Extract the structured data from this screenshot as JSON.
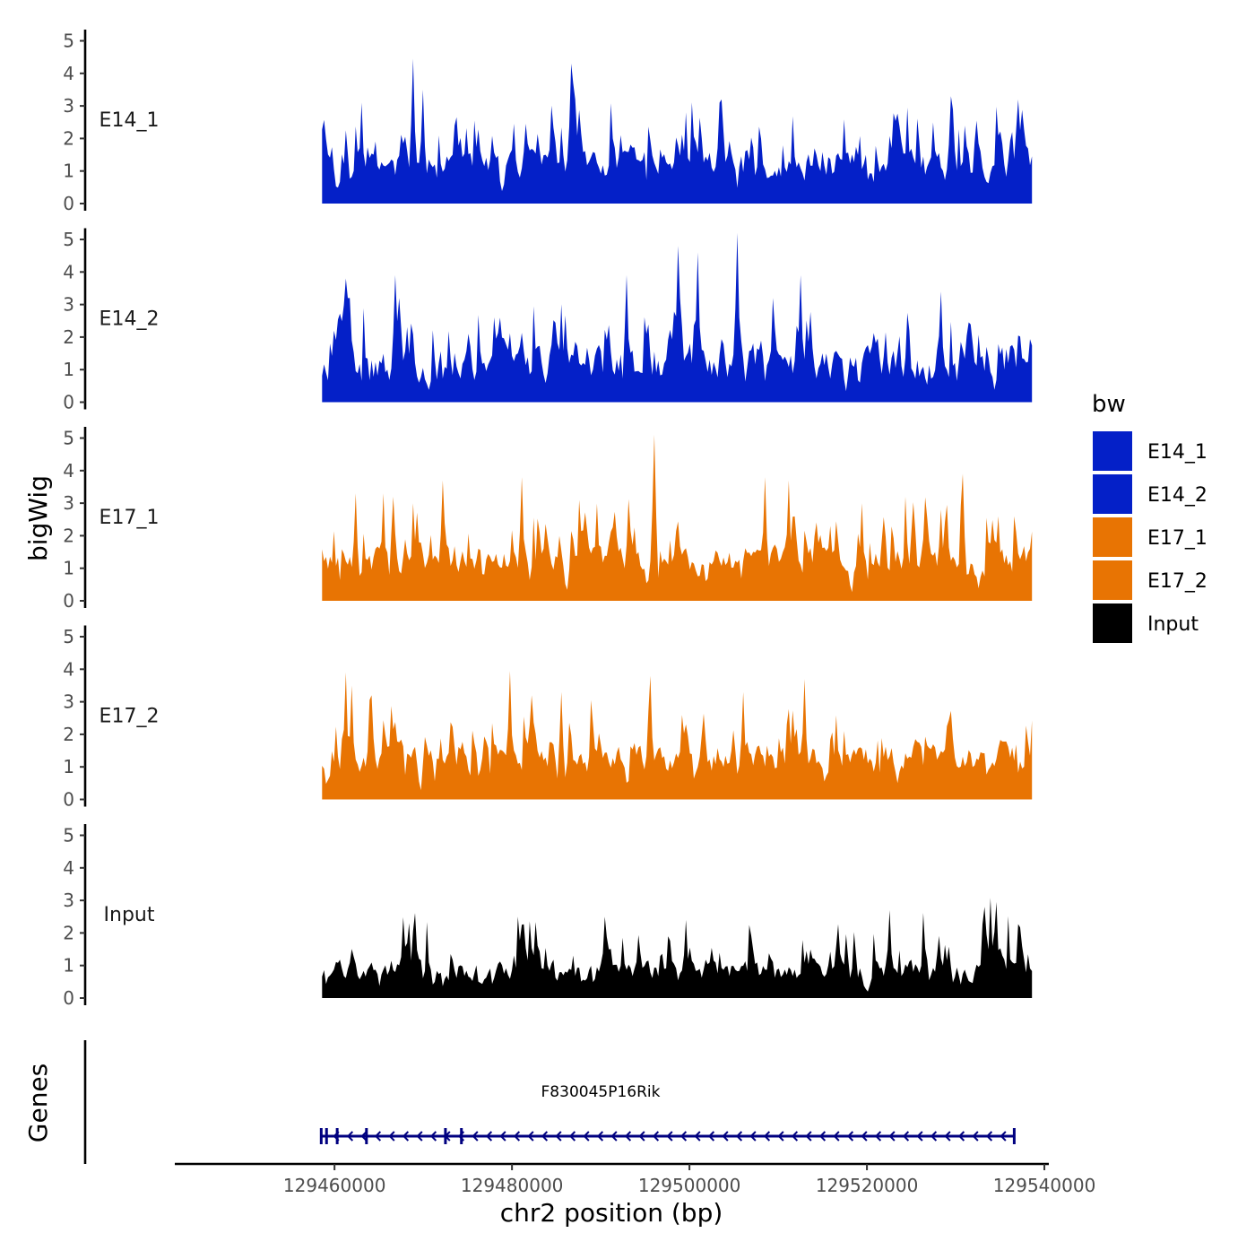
{
  "chart_data": {
    "type": "area",
    "chromosome": "chr2",
    "xlabel": "chr2 position (bp)",
    "ylabel": "bigWig",
    "xlim": [
      129442000,
      129540500
    ],
    "xticks": [
      129460000,
      129480000,
      129500000,
      129520000,
      129540000
    ],
    "xtick_labels": [
      "129460000",
      "129480000",
      "129500000",
      "129520000",
      "129540000"
    ],
    "x_data_range": [
      129458600,
      129538600
    ],
    "ylim": [
      0,
      5.4
    ],
    "yticks": [
      0,
      1,
      2,
      3,
      4,
      5
    ],
    "ytick_labels": [
      "0",
      "1",
      "2",
      "3",
      "4",
      "5"
    ],
    "legend": {
      "title": "bw",
      "position": "right",
      "entries": [
        {
          "label": "E14_1",
          "color": "#0420C8"
        },
        {
          "label": "E14_2",
          "color": "#0420C8"
        },
        {
          "label": "E17_1",
          "color": "#E87403"
        },
        {
          "label": "E17_2",
          "color": "#E87403"
        },
        {
          "label": "Input",
          "color": "#000000"
        }
      ]
    },
    "series": [
      {
        "name": "E14_1",
        "color": "#0420C8",
        "seed": 11,
        "base": 0.9,
        "spread": 1.5,
        "peaks": [
          [
            129468900,
            4.45
          ],
          [
            129470000,
            3.5
          ],
          [
            129486700,
            4.3
          ],
          [
            129487000,
            3.7
          ],
          [
            129499500,
            2.8
          ],
          [
            129529500,
            3.3
          ],
          [
            129503500,
            3.1
          ],
          [
            129463000,
            3.1
          ]
        ]
      },
      {
        "name": "E14_2",
        "color": "#0420C8",
        "seed": 23,
        "base": 0.9,
        "spread": 1.7,
        "peaks": [
          [
            129505500,
            5.2
          ],
          [
            129498800,
            4.8
          ],
          [
            129501000,
            4.6
          ],
          [
            129466800,
            3.9
          ],
          [
            129461300,
            3.8
          ],
          [
            129512500,
            3.9
          ],
          [
            129493000,
            3.9
          ],
          [
            129528300,
            3.4
          ]
        ]
      },
      {
        "name": "E17_1",
        "color": "#E87403",
        "seed": 37,
        "base": 1.0,
        "spread": 1.4,
        "peaks": [
          [
            129496000,
            5.1
          ],
          [
            129481200,
            3.8
          ],
          [
            129472200,
            3.7
          ],
          [
            129508500,
            3.8
          ],
          [
            129530800,
            3.9
          ],
          [
            129519500,
            3.0
          ],
          [
            129465500,
            3.3
          ],
          [
            129462400,
            3.3
          ],
          [
            129511200,
            3.7
          ]
        ]
      },
      {
        "name": "E17_2",
        "color": "#E87403",
        "seed": 53,
        "base": 1.0,
        "spread": 1.4,
        "peaks": [
          [
            129461200,
            3.9
          ],
          [
            129479700,
            3.95
          ],
          [
            129495700,
            3.8
          ],
          [
            129513000,
            3.7
          ],
          [
            129462000,
            3.5
          ],
          [
            129485500,
            3.3
          ],
          [
            129506000,
            3.3
          ]
        ]
      },
      {
        "name": "Input",
        "color": "#000000",
        "seed": 71,
        "base": 0.7,
        "spread": 1.0,
        "peaks": [
          [
            129534700,
            2.95
          ],
          [
            129522500,
            2.7
          ],
          [
            129490500,
            2.5
          ],
          [
            129481000,
            2.25
          ],
          [
            129468500,
            2.3
          ],
          [
            129499500,
            2.4
          ]
        ]
      }
    ],
    "genes": {
      "panel_label": "Genes",
      "gene_name": "F830045P16Rik",
      "start": 129458400,
      "end": 129536700,
      "strand": "-",
      "color": "#000080",
      "exons": [
        129458500,
        129459100,
        129460300,
        129463600,
        129472500,
        129474300,
        129536600
      ]
    }
  }
}
